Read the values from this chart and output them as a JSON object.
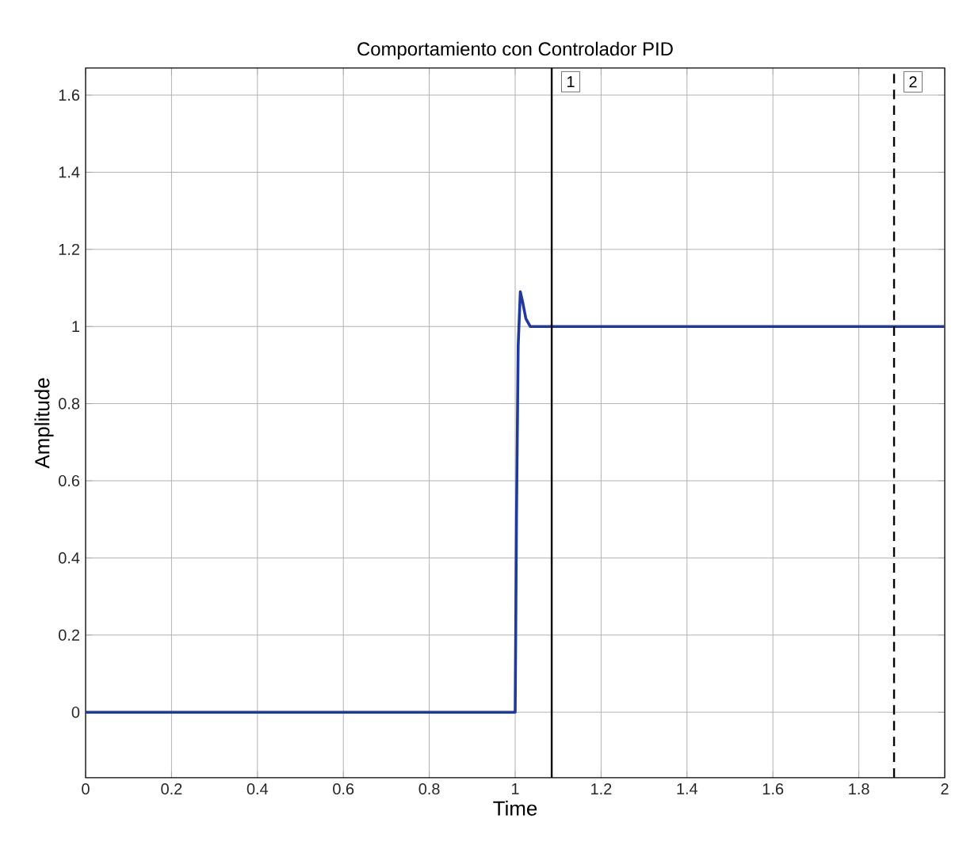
{
  "chart_data": {
    "type": "line",
    "title": "Comportamiento con Controlador PID",
    "xlabel": "Time",
    "ylabel": "Amplitude",
    "x": [
      0,
      1.0,
      1.003,
      1.007,
      1.012,
      1.018,
      1.025,
      1.035,
      1.05,
      2
    ],
    "series": [
      {
        "color": "#1f3a9e",
        "values": [
          0,
          0,
          0.5,
          0.95,
          1.09,
          1.06,
          1.02,
          1.0,
          1.0,
          1.0
        ]
      }
    ],
    "xlim": [
      0,
      2
    ],
    "ylim": [
      -0.17,
      1.67
    ],
    "xticks": [
      0,
      0.2,
      0.4,
      0.6,
      0.8,
      1,
      1.2,
      1.4,
      1.6,
      1.8,
      2
    ],
    "yticks": [
      0,
      0.2,
      0.4,
      0.6,
      0.8,
      1,
      1.2,
      1.4,
      1.6
    ],
    "ref_lines": [
      {
        "axis": "x",
        "value": 1.085,
        "label": "1",
        "color": "#000000",
        "line_style": "solid"
      },
      {
        "axis": "x",
        "value": 1.882,
        "label": "2",
        "color": "#000000",
        "line_style": "dashed"
      }
    ],
    "grid": true,
    "marker": "none",
    "line_style": "solid"
  }
}
